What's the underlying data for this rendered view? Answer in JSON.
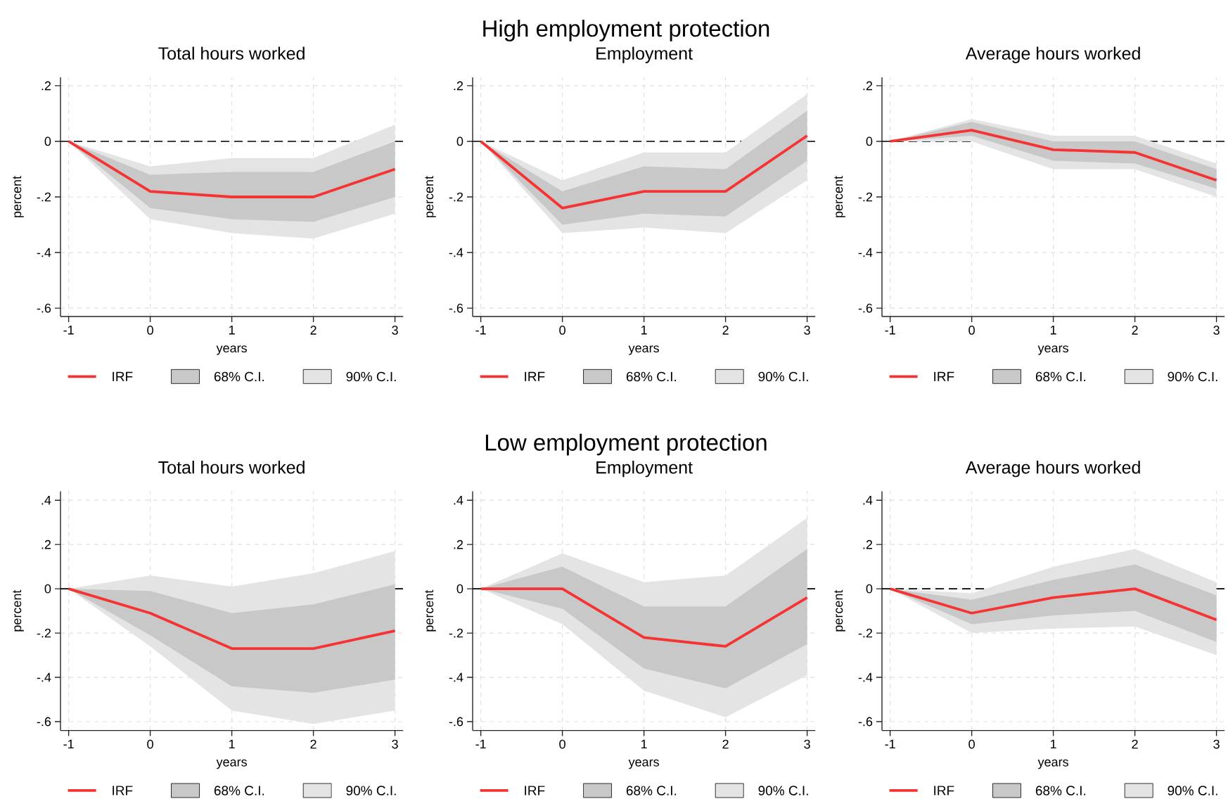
{
  "chart_data": [
    {
      "type": "other",
      "title": "High employment protection"
    },
    {
      "type": "line",
      "title": "Total hours worked",
      "xlabel": "years",
      "ylabel": "percent",
      "x": [
        -1,
        0,
        1,
        2,
        3
      ],
      "series": [
        {
          "name": "IRF",
          "color": "#f53333",
          "values": [
            0,
            -0.18,
            -0.2,
            -0.2,
            -0.1
          ]
        },
        {
          "name": "68% C.I.",
          "type": "area",
          "color": "#c8c8c8",
          "values": [
            null,
            null,
            null,
            null,
            null
          ],
          "lower": [
            0,
            -0.24,
            -0.28,
            -0.29,
            -0.2
          ],
          "upper": [
            0,
            -0.12,
            -0.11,
            -0.11,
            0.0
          ]
        },
        {
          "name": "90% C.I.",
          "type": "area",
          "color": "#e4e4e4",
          "values": [
            null,
            null,
            null,
            null,
            null
          ],
          "lower": [
            0,
            -0.28,
            -0.33,
            -0.35,
            -0.26
          ],
          "upper": [
            0,
            -0.09,
            -0.06,
            -0.06,
            0.06
          ]
        }
      ],
      "xlim": [
        -1.1,
        3.1
      ],
      "xticks": [
        -1,
        0,
        1,
        2,
        3
      ],
      "ylim": [
        -0.63,
        0.23
      ],
      "yticks": [
        {
          "value": 0.2,
          "label": ".2"
        },
        0,
        {
          "value": -0.2,
          "label": "-.2"
        },
        {
          "value": -0.4,
          "label": "-.4"
        },
        {
          "value": -0.6,
          "label": "-.6"
        }
      ],
      "ref_lines": [
        {
          "axis": "y",
          "value": 0,
          "color": "#000000",
          "line_style": "dashed"
        }
      ],
      "grid": true,
      "legend": "bottom"
    },
    {
      "type": "line",
      "title": "Employment",
      "xlabel": "years",
      "ylabel": "percent",
      "x": [
        -1,
        0,
        1,
        2,
        3
      ],
      "series": [
        {
          "name": "IRF",
          "color": "#f53333",
          "values": [
            0,
            -0.24,
            -0.18,
            -0.18,
            0.02
          ]
        },
        {
          "name": "68% C.I.",
          "type": "area",
          "color": "#c8c8c8",
          "values": [
            null,
            null,
            null,
            null,
            null
          ],
          "lower": [
            0,
            -0.3,
            -0.26,
            -0.27,
            -0.07
          ],
          "upper": [
            0,
            -0.18,
            -0.09,
            -0.1,
            0.11
          ]
        },
        {
          "name": "90% C.I.",
          "type": "area",
          "color": "#e4e4e4",
          "values": [
            null,
            null,
            null,
            null,
            null
          ],
          "lower": [
            0,
            -0.33,
            -0.31,
            -0.33,
            -0.14
          ],
          "upper": [
            0,
            -0.14,
            -0.04,
            -0.04,
            0.17
          ]
        }
      ],
      "xlim": [
        -1.1,
        3.1
      ],
      "xticks": [
        -1,
        0,
        1,
        2,
        3
      ],
      "ylim": [
        -0.63,
        0.23
      ],
      "yticks": [
        {
          "value": 0.2,
          "label": ".2"
        },
        0,
        {
          "value": -0.2,
          "label": "-.2"
        },
        {
          "value": -0.4,
          "label": "-.4"
        },
        {
          "value": -0.6,
          "label": "-.6"
        }
      ],
      "ref_lines": [
        {
          "axis": "y",
          "value": 0,
          "color": "#000000",
          "line_style": "dashed"
        }
      ],
      "grid": true,
      "legend": "bottom"
    },
    {
      "type": "line",
      "title": "Average hours worked",
      "xlabel": "years",
      "ylabel": "percent",
      "x": [
        -1,
        0,
        1,
        2,
        3
      ],
      "series": [
        {
          "name": "IRF",
          "color": "#f53333",
          "values": [
            0,
            0.04,
            -0.03,
            -0.04,
            -0.14
          ]
        },
        {
          "name": "68% C.I.",
          "type": "area",
          "color": "#c8c8c8",
          "values": [
            null,
            null,
            null,
            null,
            null
          ],
          "lower": [
            0,
            0.02,
            -0.07,
            -0.08,
            -0.17
          ],
          "upper": [
            0,
            0.07,
            0.0,
            0.0,
            -0.1
          ]
        },
        {
          "name": "90% C.I.",
          "type": "area",
          "color": "#e4e4e4",
          "values": [
            null,
            null,
            null,
            null,
            null
          ],
          "lower": [
            0,
            0.0,
            -0.1,
            -0.1,
            -0.2
          ],
          "upper": [
            0,
            0.08,
            0.02,
            0.02,
            -0.08
          ]
        }
      ],
      "xlim": [
        -1.1,
        3.1
      ],
      "xticks": [
        -1,
        0,
        1,
        2,
        3
      ],
      "ylim": [
        -0.63,
        0.23
      ],
      "yticks": [
        {
          "value": 0.2,
          "label": ".2"
        },
        0,
        {
          "value": -0.2,
          "label": "-.2"
        },
        {
          "value": -0.4,
          "label": "-.4"
        },
        {
          "value": -0.6,
          "label": "-.6"
        }
      ],
      "ref_lines": [
        {
          "axis": "y",
          "value": 0,
          "color": "#000000",
          "line_style": "dashed"
        }
      ],
      "grid": true,
      "legend": "bottom"
    },
    {
      "type": "other",
      "title": "Low employment protection"
    },
    {
      "type": "line",
      "title": "Total hours worked",
      "xlabel": "years",
      "ylabel": "percent",
      "x": [
        -1,
        0,
        1,
        2,
        3
      ],
      "series": [
        {
          "name": "IRF",
          "color": "#f53333",
          "values": [
            0,
            -0.11,
            -0.27,
            -0.27,
            -0.19
          ]
        },
        {
          "name": "68% C.I.",
          "type": "area",
          "color": "#c8c8c8",
          "values": [
            null,
            null,
            null,
            null,
            null
          ],
          "lower": [
            0,
            -0.21,
            -0.44,
            -0.47,
            -0.41
          ],
          "upper": [
            0,
            -0.01,
            -0.11,
            -0.07,
            0.02
          ]
        },
        {
          "name": "90% C.I.",
          "type": "area",
          "color": "#e4e4e4",
          "values": [
            null,
            null,
            null,
            null,
            null
          ],
          "lower": [
            0,
            -0.26,
            -0.55,
            -0.61,
            -0.55
          ],
          "upper": [
            0,
            0.06,
            0.01,
            0.07,
            0.17
          ]
        }
      ],
      "xlim": [
        -1.1,
        3.1
      ],
      "xticks": [
        -1,
        0,
        1,
        2,
        3
      ],
      "ylim": [
        -0.64,
        0.44
      ],
      "yticks": [
        {
          "value": 0.4,
          "label": ".4"
        },
        {
          "value": 0.2,
          "label": ".2"
        },
        0,
        {
          "value": -0.2,
          "label": "-.2"
        },
        {
          "value": -0.4,
          "label": "-.4"
        },
        {
          "value": -0.6,
          "label": "-.6"
        }
      ],
      "ref_lines": [
        {
          "axis": "y",
          "value": 0,
          "color": "#000000",
          "line_style": "dashed"
        }
      ],
      "grid": true,
      "legend": "bottom"
    },
    {
      "type": "line",
      "title": "Employment",
      "xlabel": "years",
      "ylabel": "percent",
      "x": [
        -1,
        0,
        1,
        2,
        3
      ],
      "series": [
        {
          "name": "IRF",
          "color": "#f53333",
          "values": [
            0,
            0.0,
            -0.22,
            -0.26,
            -0.04
          ]
        },
        {
          "name": "68% C.I.",
          "type": "area",
          "color": "#c8c8c8",
          "values": [
            null,
            null,
            null,
            null,
            null
          ],
          "lower": [
            0,
            -0.09,
            -0.36,
            -0.45,
            -0.25
          ],
          "upper": [
            0,
            0.1,
            -0.08,
            -0.08,
            0.18
          ]
        },
        {
          "name": "90% C.I.",
          "type": "area",
          "color": "#e4e4e4",
          "values": [
            null,
            null,
            null,
            null,
            null
          ],
          "lower": [
            0,
            -0.16,
            -0.46,
            -0.58,
            -0.39
          ],
          "upper": [
            0,
            0.16,
            0.03,
            0.06,
            0.32
          ]
        }
      ],
      "xlim": [
        -1.1,
        3.1
      ],
      "xticks": [
        -1,
        0,
        1,
        2,
        3
      ],
      "ylim": [
        -0.64,
        0.44
      ],
      "yticks": [
        {
          "value": 0.4,
          "label": ".4"
        },
        {
          "value": 0.2,
          "label": ".2"
        },
        0,
        {
          "value": -0.2,
          "label": "-.2"
        },
        {
          "value": -0.4,
          "label": "-.4"
        },
        {
          "value": -0.6,
          "label": "-.6"
        }
      ],
      "ref_lines": [
        {
          "axis": "y",
          "value": 0,
          "color": "#000000",
          "line_style": "dashed"
        }
      ],
      "grid": true,
      "legend": "bottom"
    },
    {
      "type": "line",
      "title": "Average hours worked",
      "xlabel": "years",
      "ylabel": "percent",
      "x": [
        -1,
        0,
        1,
        2,
        3
      ],
      "series": [
        {
          "name": "IRF",
          "color": "#f53333",
          "values": [
            0,
            -0.11,
            -0.04,
            0.0,
            -0.14
          ]
        },
        {
          "name": "68% C.I.",
          "type": "area",
          "color": "#c8c8c8",
          "values": [
            null,
            null,
            null,
            null,
            null
          ],
          "lower": [
            0,
            -0.16,
            -0.12,
            -0.1,
            -0.24
          ],
          "upper": [
            0,
            -0.05,
            0.04,
            0.11,
            -0.03
          ]
        },
        {
          "name": "90% C.I.",
          "type": "area",
          "color": "#e4e4e4",
          "values": [
            null,
            null,
            null,
            null,
            null
          ],
          "lower": [
            0,
            -0.2,
            -0.18,
            -0.17,
            -0.3
          ],
          "upper": [
            0,
            -0.02,
            0.1,
            0.18,
            0.03
          ]
        }
      ],
      "xlim": [
        -1.1,
        3.1
      ],
      "xticks": [
        -1,
        0,
        1,
        2,
        3
      ],
      "ylim": [
        -0.64,
        0.44
      ],
      "yticks": [
        {
          "value": 0.4,
          "label": ".4"
        },
        {
          "value": 0.2,
          "label": ".2"
        },
        0,
        {
          "value": -0.2,
          "label": "-.2"
        },
        {
          "value": -0.4,
          "label": "-.4"
        },
        {
          "value": -0.6,
          "label": "-.6"
        }
      ],
      "ref_lines": [
        {
          "axis": "y",
          "value": 0,
          "color": "#000000",
          "line_style": "dashed"
        }
      ],
      "grid": true,
      "legend": "bottom"
    }
  ]
}
